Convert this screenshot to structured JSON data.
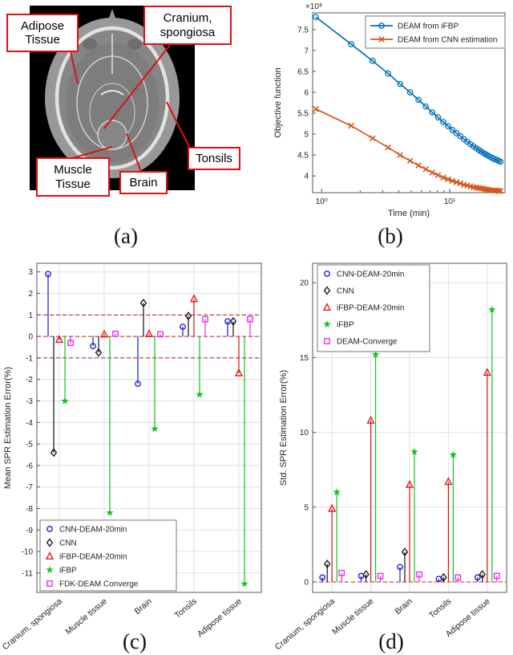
{
  "captions": {
    "a": "(a)",
    "b": "(b)",
    "c": "(c)",
    "d": "(d)"
  },
  "panel_a": {
    "labels": {
      "adipose": "Adipose\nTissue",
      "cranium": "Cranium,\nspongiosa",
      "muscle": "Muscle\nTissue",
      "brain": "Brain",
      "tonsils": "Tonsils"
    }
  },
  "chart_data": [
    {
      "panel": "b",
      "type": "line",
      "title": "",
      "xlabel": "Time (min)",
      "ylabel": "Objective function",
      "x_scale": "log",
      "xlim": [
        0.85,
        27
      ],
      "ylim": [
        3.6,
        7.9
      ],
      "y_unit_multiplier": "×10⁸",
      "x_ticks": [
        {
          "v": 1,
          "label": "10⁰"
        },
        {
          "v": 10,
          "label": "10¹"
        }
      ],
      "x_minor_ticks": [
        2,
        3,
        4,
        5,
        6,
        7,
        8,
        9,
        20
      ],
      "y_ticks": [
        4,
        4.5,
        5,
        5.5,
        6,
        6.5,
        7,
        7.5
      ],
      "grid": false,
      "legend_position": "top-right",
      "series": [
        {
          "name": "DEAM from iFBP",
          "color": "#0072bd",
          "marker": "circle",
          "x": [
            0.9,
            1.7,
            2.5,
            3.3,
            4.1,
            4.9,
            5.7,
            6.5,
            7.3,
            8.1,
            8.9,
            9.7,
            10.5,
            11.3,
            12.1,
            12.9,
            13.7,
            14.5,
            15.3,
            16.1,
            16.9,
            17.7,
            18.5,
            19.3,
            20.1,
            20.9,
            21.7,
            22.5,
            23.3,
            24.1,
            24.9
          ],
          "y": [
            7.8,
            7.15,
            6.75,
            6.45,
            6.2,
            6.0,
            5.82,
            5.66,
            5.52,
            5.4,
            5.29,
            5.19,
            5.1,
            5.02,
            4.95,
            4.88,
            4.82,
            4.76,
            4.71,
            4.66,
            4.62,
            4.58,
            4.54,
            4.51,
            4.48,
            4.45,
            4.42,
            4.4,
            4.38,
            4.36,
            4.34
          ]
        },
        {
          "name": "DEAM from CNN estimation",
          "color": "#d95319",
          "marker": "x",
          "x": [
            0.9,
            1.7,
            2.5,
            3.3,
            4.1,
            4.9,
            5.7,
            6.5,
            7.3,
            8.1,
            8.9,
            9.7,
            10.5,
            11.3,
            12.1,
            12.9,
            13.7,
            14.5,
            15.3,
            16.1,
            16.9,
            17.7,
            18.5,
            19.3,
            20.1,
            20.9,
            21.7,
            22.5,
            23.3,
            24.1,
            24.9
          ],
          "y": [
            5.6,
            5.2,
            4.9,
            4.68,
            4.5,
            4.36,
            4.25,
            4.16,
            4.08,
            4.02,
            3.96,
            3.92,
            3.88,
            3.85,
            3.82,
            3.79,
            3.77,
            3.75,
            3.73,
            3.72,
            3.71,
            3.7,
            3.69,
            3.68,
            3.67,
            3.66,
            3.66,
            3.65,
            3.65,
            3.64,
            3.64
          ]
        }
      ]
    },
    {
      "panel": "c",
      "type": "stem",
      "title": "",
      "xlabel": "",
      "ylabel": "Mean SPR Estimation Error(%)",
      "categories": [
        "Cranium, spongiosa",
        "Muscle tissue",
        "Brain",
        "Tonsils",
        "Adipose tissue"
      ],
      "ylim": [
        -11.9,
        3.4
      ],
      "y_ticks": [
        3,
        2,
        1,
        0,
        -1,
        -2,
        -3,
        -4,
        -5,
        -6,
        -7,
        -8,
        -9,
        -10,
        -11
      ],
      "grid": true,
      "ref_lines": [
        {
          "y": 1,
          "color": "#b22222"
        },
        {
          "y": 0,
          "color": "#cc2222"
        },
        {
          "y": -1,
          "color": "#b22222"
        }
      ],
      "legend_position": "bottom-left",
      "series": [
        {
          "name": "CNN-DEAM-20min",
          "color": "#1414e6",
          "marker": "circle",
          "values": [
            2.9,
            -0.45,
            -2.2,
            0.45,
            0.7
          ]
        },
        {
          "name": "CNN",
          "color": "#111111",
          "marker": "diamond",
          "values": [
            -5.4,
            -0.75,
            1.55,
            0.95,
            0.7
          ]
        },
        {
          "name": "iFBP-DEAM-20min",
          "color": "#e60e0e",
          "marker": "triangle",
          "values": [
            -0.15,
            0.1,
            0.12,
            1.75,
            -1.7
          ]
        },
        {
          "name": "iFBP",
          "color": "#0cc41c",
          "marker": "star",
          "values": [
            -3.0,
            -8.2,
            -4.3,
            -2.7,
            -11.5
          ]
        },
        {
          "name": "FDK-DEAM Converge",
          "color": "#ee22ee",
          "marker": "square",
          "values": [
            -0.3,
            0.12,
            0.1,
            0.8,
            0.8
          ]
        }
      ]
    },
    {
      "panel": "d",
      "type": "stem",
      "title": "",
      "xlabel": "",
      "ylabel": "Std. SPR Estimation Error(%)",
      "categories": [
        "Cranium, spongiosa",
        "Muscle tissue",
        "Brain",
        "Tonsils",
        "Adipose tissue"
      ],
      "ylim": [
        -0.7,
        21.3
      ],
      "y_ticks": [
        0,
        5,
        10,
        15,
        20
      ],
      "grid": true,
      "ref_lines": [
        {
          "y": 0,
          "color": "#cc2222"
        }
      ],
      "legend_position": "top-left",
      "series": [
        {
          "name": "CNN-DEAM-20min",
          "color": "#1414e6",
          "marker": "circle",
          "values": [
            0.3,
            0.4,
            1.0,
            0.2,
            0.3
          ]
        },
        {
          "name": "CNN",
          "color": "#111111",
          "marker": "diamond",
          "values": [
            1.2,
            0.5,
            2.0,
            0.3,
            0.5
          ]
        },
        {
          "name": "iFBP-DEAM-20min",
          "color": "#e60e0e",
          "marker": "triangle",
          "values": [
            4.9,
            10.8,
            6.5,
            6.7,
            14.0
          ]
        },
        {
          "name": "iFBP",
          "color": "#0cc41c",
          "marker": "star",
          "values": [
            6.0,
            15.2,
            8.7,
            8.5,
            18.2
          ]
        },
        {
          "name": "DEAM-Converge",
          "color": "#ee22ee",
          "marker": "square",
          "values": [
            0.6,
            0.4,
            0.5,
            0.3,
            0.4
          ]
        }
      ]
    }
  ]
}
